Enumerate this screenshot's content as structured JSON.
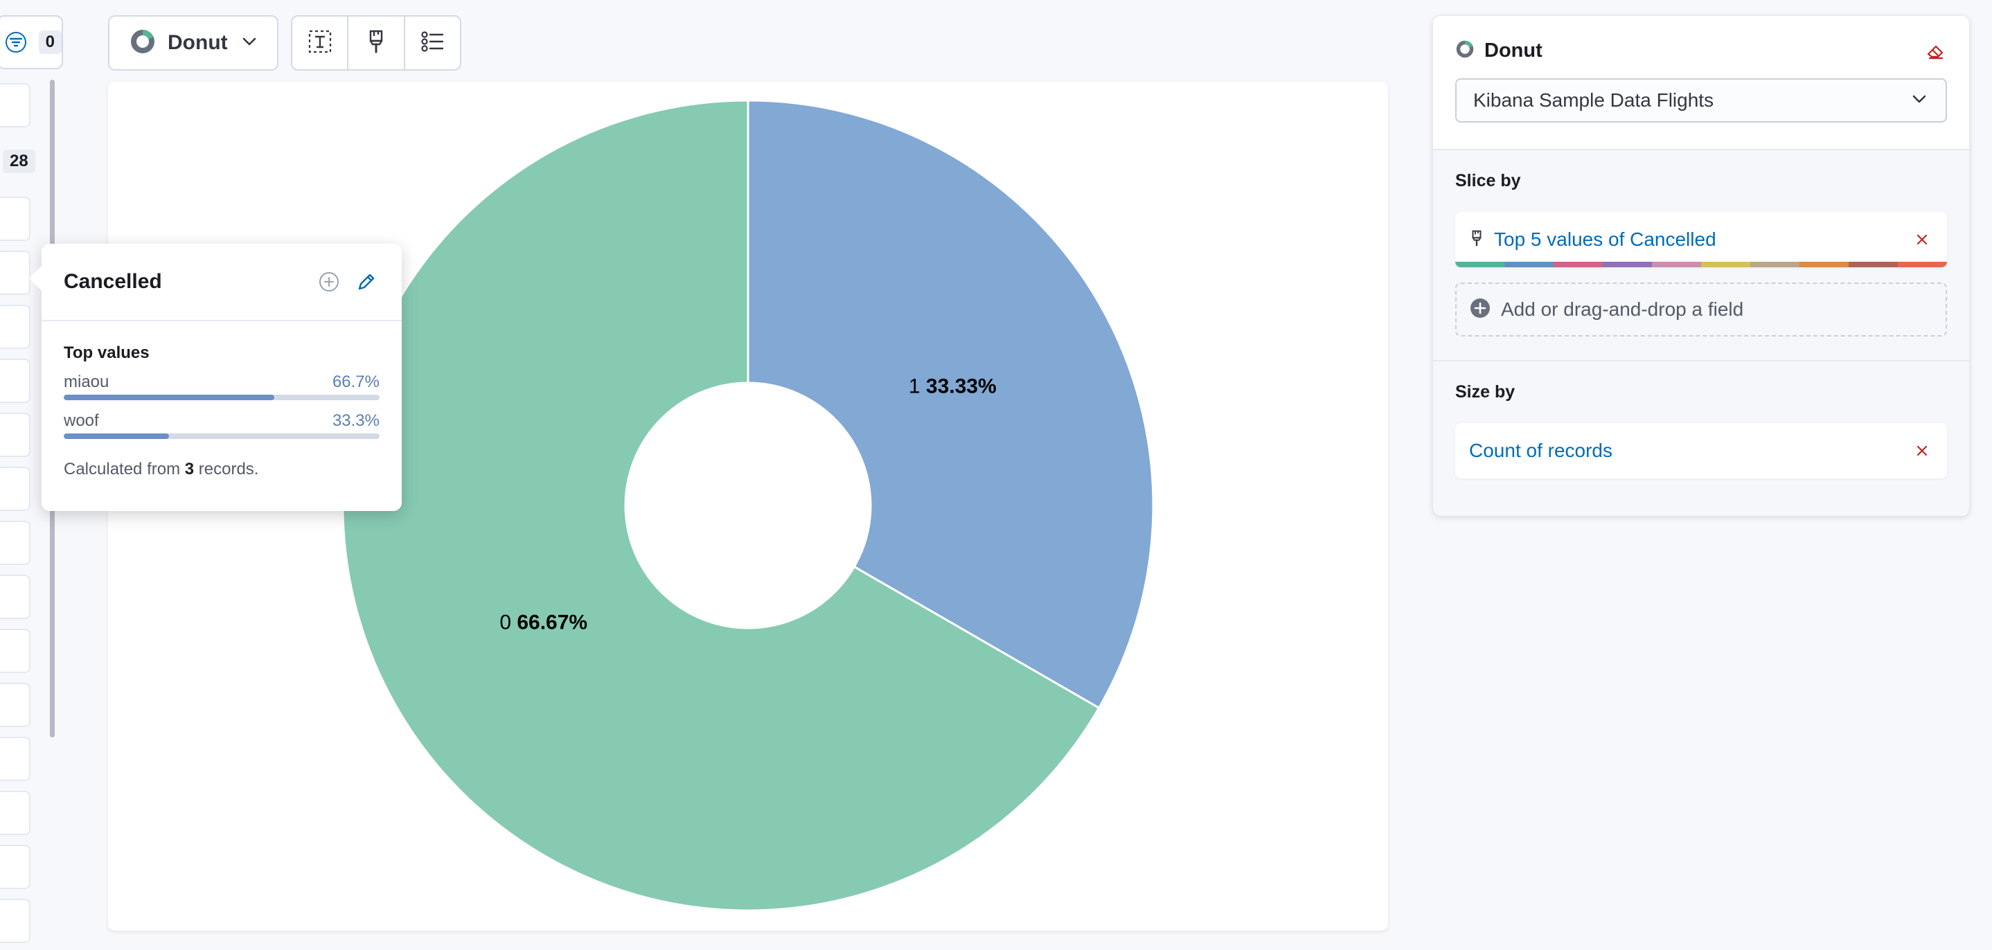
{
  "field_filter": {
    "count": "0"
  },
  "field_count": "28",
  "toolbar": {
    "chart_type_label": "Donut"
  },
  "chart_data": {
    "type": "pie",
    "variant": "donut",
    "categories": [
      "1",
      "0"
    ],
    "values": [
      33.33,
      66.67
    ],
    "value_labels": [
      "33.33%",
      "66.67%"
    ],
    "colors": [
      "#82a8d4",
      "#86cab2"
    ]
  },
  "popover": {
    "title": "Cancelled",
    "top_values_label": "Top values",
    "values": [
      {
        "name": "miaou",
        "pct_label": "66.7%",
        "pct": 0.667
      },
      {
        "name": "woof",
        "pct_label": "33.3%",
        "pct": 0.333
      }
    ],
    "calc_prefix": "Calculated from ",
    "calc_count": "3",
    "calc_suffix": " records."
  },
  "panel": {
    "chart_type": "Donut",
    "data_view": "Kibana Sample Data Flights",
    "slice_by_label": "Slice by",
    "slice_dimension": "Top 5 values of Cancelled",
    "add_field_label": "Add or drag-and-drop a field",
    "size_by_label": "Size by",
    "size_dimension": "Count of records",
    "palette": [
      "#54b399",
      "#6092c0",
      "#d36086",
      "#9170b8",
      "#ca8eae",
      "#d6bf57",
      "#b9a888",
      "#da8b45",
      "#aa6556",
      "#e7664c"
    ]
  }
}
